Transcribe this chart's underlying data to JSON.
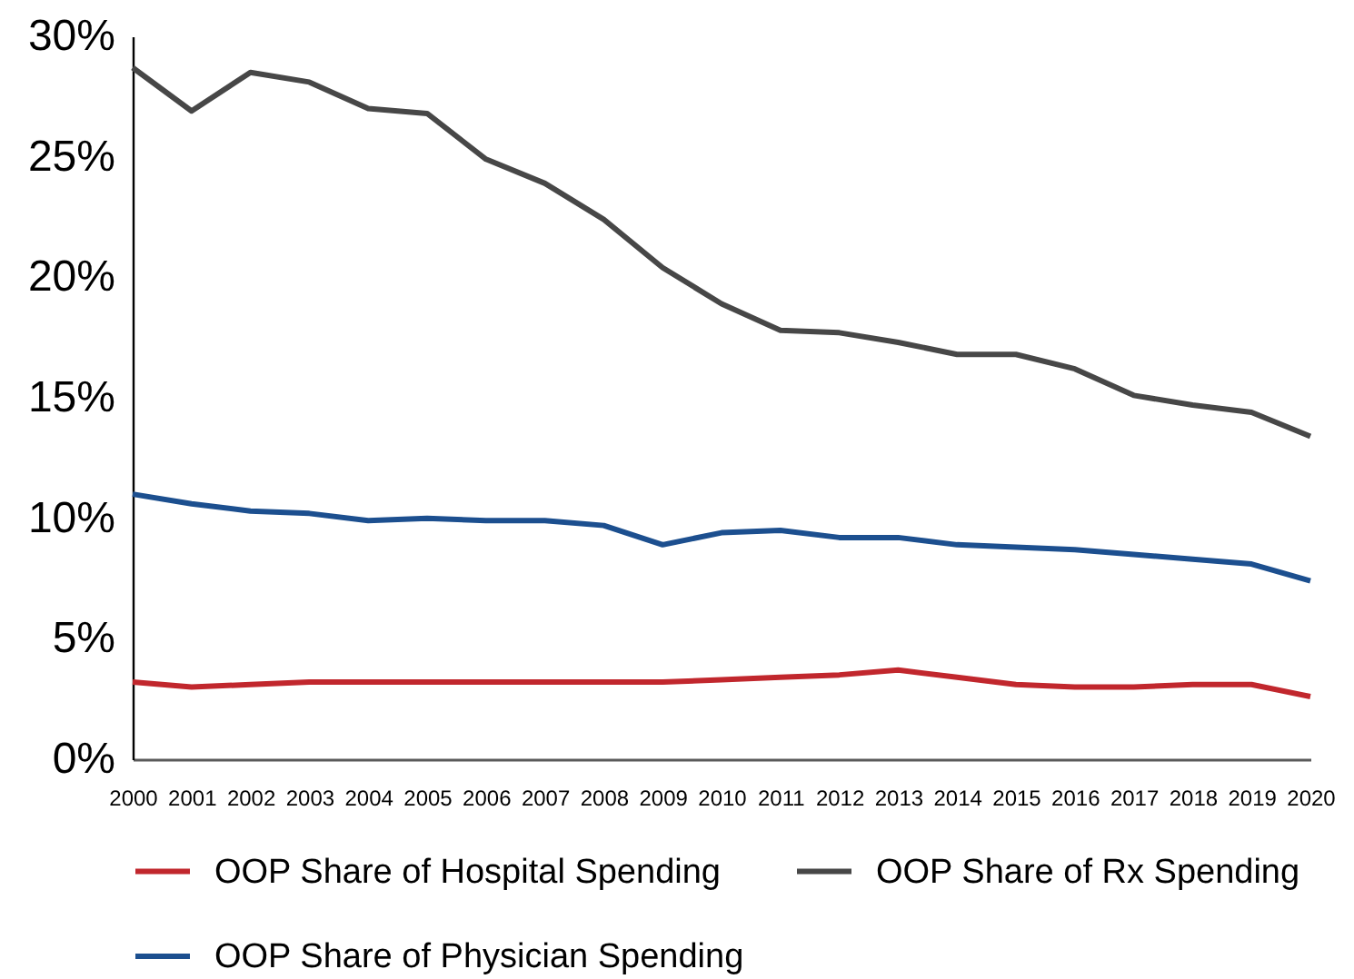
{
  "chart_data": {
    "type": "line",
    "categories": [
      "2000",
      "2001",
      "2002",
      "2003",
      "2004",
      "2005",
      "2006",
      "2007",
      "2008",
      "2009",
      "2010",
      "2011",
      "2012",
      "2013",
      "2014",
      "2015",
      "2016",
      "2017",
      "2018",
      "2019",
      "2020"
    ],
    "series": [
      {
        "name": "OOP Share of Hospital Spending",
        "color": "#c1272d",
        "values": [
          3.2,
          3.0,
          3.1,
          3.2,
          3.2,
          3.2,
          3.2,
          3.2,
          3.2,
          3.2,
          3.3,
          3.4,
          3.5,
          3.7,
          3.4,
          3.1,
          3.0,
          3.0,
          3.1,
          3.1,
          2.6
        ]
      },
      {
        "name": "OOP Share of Rx Spending",
        "color": "#474747",
        "values": [
          28.7,
          26.9,
          28.5,
          28.1,
          27.0,
          26.8,
          24.9,
          23.9,
          22.4,
          20.4,
          18.9,
          17.8,
          17.7,
          17.3,
          16.8,
          16.8,
          16.2,
          15.1,
          14.7,
          14.4,
          13.4
        ]
      },
      {
        "name": "OOP Share of Physician Spending",
        "color": "#1c4f8f",
        "values": [
          11.0,
          10.6,
          10.3,
          10.2,
          9.9,
          10.0,
          9.9,
          9.9,
          9.7,
          8.9,
          9.4,
          9.5,
          9.2,
          9.2,
          8.9,
          8.8,
          8.7,
          8.5,
          8.3,
          8.1,
          7.4
        ]
      }
    ],
    "ylim": [
      0,
      30
    ],
    "yticks": [
      {
        "value": 0,
        "label": "0%"
      },
      {
        "value": 5,
        "label": "5%"
      },
      {
        "value": 10,
        "label": "10%"
      },
      {
        "value": 15,
        "label": "15%"
      },
      {
        "value": 20,
        "label": "20%"
      },
      {
        "value": 25,
        "label": "25%"
      },
      {
        "value": 30,
        "label": "30%"
      }
    ],
    "legend": "bottom"
  }
}
